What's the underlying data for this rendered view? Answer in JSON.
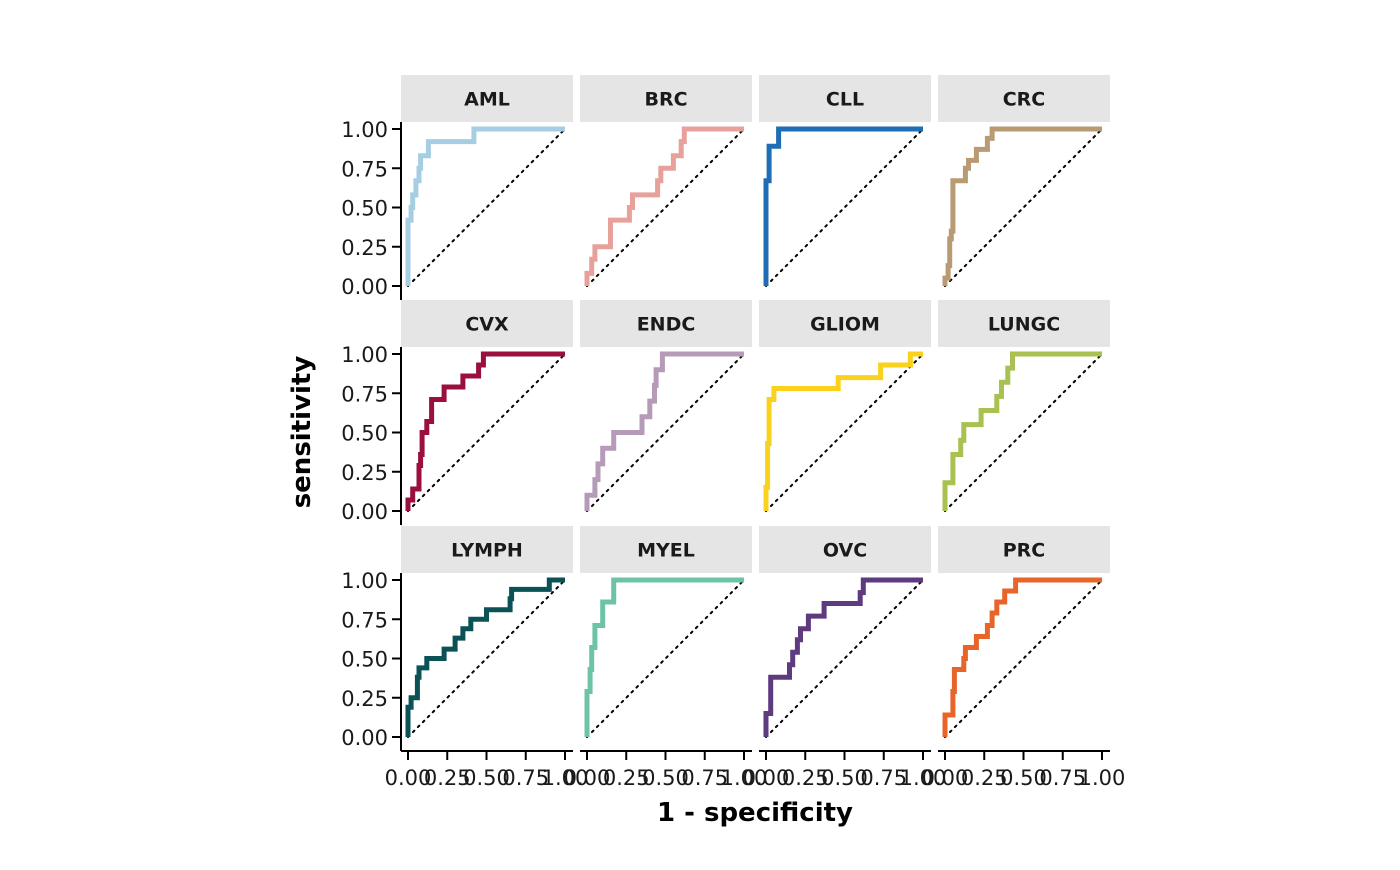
{
  "chart_data": {
    "type": "line",
    "layout": "facet-grid",
    "xlabel": "1 - specificity",
    "ylabel": "sensitivity",
    "xlim": [
      0,
      1
    ],
    "ylim": [
      0,
      1
    ],
    "x_ticks": [
      "0.00",
      "0.25",
      "0.50",
      "0.75",
      "1.00"
    ],
    "y_ticks": [
      "0.00",
      "0.25",
      "0.50",
      "0.75",
      "1.00"
    ],
    "reference_line": "diagonal dotted",
    "grid": false,
    "legend": "none",
    "panels": [
      {
        "name": "AML",
        "color": "#A6CEE3",
        "points": [
          [
            0,
            0
          ],
          [
            0,
            0.42
          ],
          [
            0.02,
            0.42
          ],
          [
            0.02,
            0.5
          ],
          [
            0.03,
            0.5
          ],
          [
            0.03,
            0.58
          ],
          [
            0.05,
            0.58
          ],
          [
            0.05,
            0.67
          ],
          [
            0.07,
            0.67
          ],
          [
            0.07,
            0.75
          ],
          [
            0.08,
            0.75
          ],
          [
            0.08,
            0.83
          ],
          [
            0.13,
            0.83
          ],
          [
            0.13,
            0.92
          ],
          [
            0.42,
            0.92
          ],
          [
            0.42,
            1
          ],
          [
            1,
            1
          ]
        ]
      },
      {
        "name": "BRC",
        "color": "#E8A19A",
        "points": [
          [
            0,
            0
          ],
          [
            0,
            0.08
          ],
          [
            0.03,
            0.08
          ],
          [
            0.03,
            0.17
          ],
          [
            0.05,
            0.17
          ],
          [
            0.05,
            0.25
          ],
          [
            0.15,
            0.25
          ],
          [
            0.15,
            0.42
          ],
          [
            0.27,
            0.42
          ],
          [
            0.27,
            0.5
          ],
          [
            0.29,
            0.5
          ],
          [
            0.29,
            0.58
          ],
          [
            0.45,
            0.58
          ],
          [
            0.45,
            0.67
          ],
          [
            0.47,
            0.67
          ],
          [
            0.47,
            0.75
          ],
          [
            0.55,
            0.75
          ],
          [
            0.55,
            0.83
          ],
          [
            0.6,
            0.83
          ],
          [
            0.6,
            0.92
          ],
          [
            0.62,
            0.92
          ],
          [
            0.62,
            1
          ],
          [
            1,
            1
          ]
        ]
      },
      {
        "name": "CLL",
        "color": "#1F6DB5",
        "points": [
          [
            0,
            0
          ],
          [
            0,
            0.67
          ],
          [
            0.02,
            0.67
          ],
          [
            0.02,
            0.89
          ],
          [
            0.08,
            0.89
          ],
          [
            0.08,
            1
          ],
          [
            1,
            1
          ]
        ]
      },
      {
        "name": "CRC",
        "color": "#B89A73",
        "points": [
          [
            0,
            0
          ],
          [
            0,
            0.05
          ],
          [
            0.02,
            0.05
          ],
          [
            0.02,
            0.13
          ],
          [
            0.03,
            0.13
          ],
          [
            0.03,
            0.3
          ],
          [
            0.04,
            0.3
          ],
          [
            0.04,
            0.35
          ],
          [
            0.05,
            0.35
          ],
          [
            0.05,
            0.67
          ],
          [
            0.13,
            0.67
          ],
          [
            0.13,
            0.75
          ],
          [
            0.15,
            0.75
          ],
          [
            0.15,
            0.8
          ],
          [
            0.2,
            0.8
          ],
          [
            0.2,
            0.87
          ],
          [
            0.27,
            0.87
          ],
          [
            0.27,
            0.94
          ],
          [
            0.3,
            0.94
          ],
          [
            0.3,
            1
          ],
          [
            1,
            1
          ]
        ]
      },
      {
        "name": "CVX",
        "color": "#9B0F3E",
        "points": [
          [
            0,
            0
          ],
          [
            0,
            0.07
          ],
          [
            0.03,
            0.07
          ],
          [
            0.03,
            0.14
          ],
          [
            0.07,
            0.14
          ],
          [
            0.07,
            0.29
          ],
          [
            0.08,
            0.29
          ],
          [
            0.08,
            0.36
          ],
          [
            0.09,
            0.36
          ],
          [
            0.09,
            0.5
          ],
          [
            0.12,
            0.5
          ],
          [
            0.12,
            0.57
          ],
          [
            0.15,
            0.57
          ],
          [
            0.15,
            0.71
          ],
          [
            0.23,
            0.71
          ],
          [
            0.23,
            0.79
          ],
          [
            0.35,
            0.79
          ],
          [
            0.35,
            0.86
          ],
          [
            0.45,
            0.86
          ],
          [
            0.45,
            0.93
          ],
          [
            0.48,
            0.93
          ],
          [
            0.48,
            1
          ],
          [
            1,
            1
          ]
        ]
      },
      {
        "name": "ENDC",
        "color": "#B59BB8",
        "points": [
          [
            0,
            0
          ],
          [
            0,
            0.1
          ],
          [
            0.05,
            0.1
          ],
          [
            0.05,
            0.2
          ],
          [
            0.07,
            0.2
          ],
          [
            0.07,
            0.3
          ],
          [
            0.1,
            0.3
          ],
          [
            0.1,
            0.4
          ],
          [
            0.17,
            0.4
          ],
          [
            0.17,
            0.5
          ],
          [
            0.35,
            0.5
          ],
          [
            0.35,
            0.6
          ],
          [
            0.4,
            0.6
          ],
          [
            0.4,
            0.7
          ],
          [
            0.43,
            0.7
          ],
          [
            0.43,
            0.8
          ],
          [
            0.44,
            0.8
          ],
          [
            0.44,
            0.9
          ],
          [
            0.48,
            0.9
          ],
          [
            0.48,
            1
          ],
          [
            1,
            1
          ]
        ]
      },
      {
        "name": "GLIOM",
        "color": "#FAD21E",
        "points": [
          [
            0,
            0
          ],
          [
            0,
            0.15
          ],
          [
            0.01,
            0.15
          ],
          [
            0.01,
            0.43
          ],
          [
            0.02,
            0.43
          ],
          [
            0.02,
            0.71
          ],
          [
            0.05,
            0.71
          ],
          [
            0.05,
            0.78
          ],
          [
            0.46,
            0.78
          ],
          [
            0.46,
            0.85
          ],
          [
            0.73,
            0.85
          ],
          [
            0.73,
            0.93
          ],
          [
            0.92,
            0.93
          ],
          [
            0.92,
            1
          ],
          [
            1,
            1
          ]
        ]
      },
      {
        "name": "LUNGC",
        "color": "#A8C150",
        "points": [
          [
            0,
            0
          ],
          [
            0,
            0.18
          ],
          [
            0.05,
            0.18
          ],
          [
            0.05,
            0.36
          ],
          [
            0.1,
            0.36
          ],
          [
            0.1,
            0.45
          ],
          [
            0.12,
            0.45
          ],
          [
            0.12,
            0.55
          ],
          [
            0.23,
            0.55
          ],
          [
            0.23,
            0.64
          ],
          [
            0.33,
            0.64
          ],
          [
            0.33,
            0.73
          ],
          [
            0.36,
            0.73
          ],
          [
            0.36,
            0.82
          ],
          [
            0.4,
            0.82
          ],
          [
            0.4,
            0.91
          ],
          [
            0.43,
            0.91
          ],
          [
            0.43,
            1
          ],
          [
            1,
            1
          ]
        ]
      },
      {
        "name": "LYMPH",
        "color": "#0B5257",
        "points": [
          [
            0,
            0
          ],
          [
            0,
            0.19
          ],
          [
            0.02,
            0.19
          ],
          [
            0.02,
            0.25
          ],
          [
            0.06,
            0.25
          ],
          [
            0.06,
            0.38
          ],
          [
            0.07,
            0.38
          ],
          [
            0.07,
            0.44
          ],
          [
            0.12,
            0.44
          ],
          [
            0.12,
            0.5
          ],
          [
            0.23,
            0.5
          ],
          [
            0.23,
            0.56
          ],
          [
            0.3,
            0.56
          ],
          [
            0.3,
            0.63
          ],
          [
            0.35,
            0.63
          ],
          [
            0.35,
            0.69
          ],
          [
            0.4,
            0.69
          ],
          [
            0.4,
            0.75
          ],
          [
            0.5,
            0.75
          ],
          [
            0.5,
            0.81
          ],
          [
            0.65,
            0.81
          ],
          [
            0.65,
            0.88
          ],
          [
            0.66,
            0.88
          ],
          [
            0.66,
            0.94
          ],
          [
            0.9,
            0.94
          ],
          [
            0.9,
            1
          ],
          [
            1,
            1
          ]
        ]
      },
      {
        "name": "MYEL",
        "color": "#6CC4A4",
        "points": [
          [
            0,
            0
          ],
          [
            0,
            0.29
          ],
          [
            0.02,
            0.29
          ],
          [
            0.02,
            0.43
          ],
          [
            0.03,
            0.43
          ],
          [
            0.03,
            0.57
          ],
          [
            0.05,
            0.57
          ],
          [
            0.05,
            0.71
          ],
          [
            0.1,
            0.71
          ],
          [
            0.1,
            0.86
          ],
          [
            0.17,
            0.86
          ],
          [
            0.17,
            1
          ],
          [
            1,
            1
          ]
        ]
      },
      {
        "name": "OVC",
        "color": "#5E3A7E",
        "points": [
          [
            0,
            0
          ],
          [
            0,
            0.15
          ],
          [
            0.03,
            0.15
          ],
          [
            0.03,
            0.38
          ],
          [
            0.15,
            0.38
          ],
          [
            0.15,
            0.46
          ],
          [
            0.17,
            0.46
          ],
          [
            0.17,
            0.54
          ],
          [
            0.2,
            0.54
          ],
          [
            0.2,
            0.62
          ],
          [
            0.22,
            0.62
          ],
          [
            0.22,
            0.69
          ],
          [
            0.27,
            0.69
          ],
          [
            0.27,
            0.77
          ],
          [
            0.37,
            0.77
          ],
          [
            0.37,
            0.85
          ],
          [
            0.6,
            0.85
          ],
          [
            0.6,
            0.92
          ],
          [
            0.62,
            0.92
          ],
          [
            0.62,
            1
          ],
          [
            1,
            1
          ]
        ]
      },
      {
        "name": "PRC",
        "color": "#E8652A",
        "points": [
          [
            0,
            0
          ],
          [
            0,
            0.14
          ],
          [
            0.05,
            0.14
          ],
          [
            0.05,
            0.29
          ],
          [
            0.06,
            0.29
          ],
          [
            0.06,
            0.43
          ],
          [
            0.12,
            0.43
          ],
          [
            0.12,
            0.5
          ],
          [
            0.13,
            0.5
          ],
          [
            0.13,
            0.57
          ],
          [
            0.2,
            0.57
          ],
          [
            0.2,
            0.64
          ],
          [
            0.27,
            0.64
          ],
          [
            0.27,
            0.71
          ],
          [
            0.3,
            0.71
          ],
          [
            0.3,
            0.79
          ],
          [
            0.33,
            0.79
          ],
          [
            0.33,
            0.86
          ],
          [
            0.38,
            0.86
          ],
          [
            0.38,
            0.93
          ],
          [
            0.45,
            0.93
          ],
          [
            0.45,
            1
          ],
          [
            1,
            1
          ]
        ]
      }
    ]
  }
}
